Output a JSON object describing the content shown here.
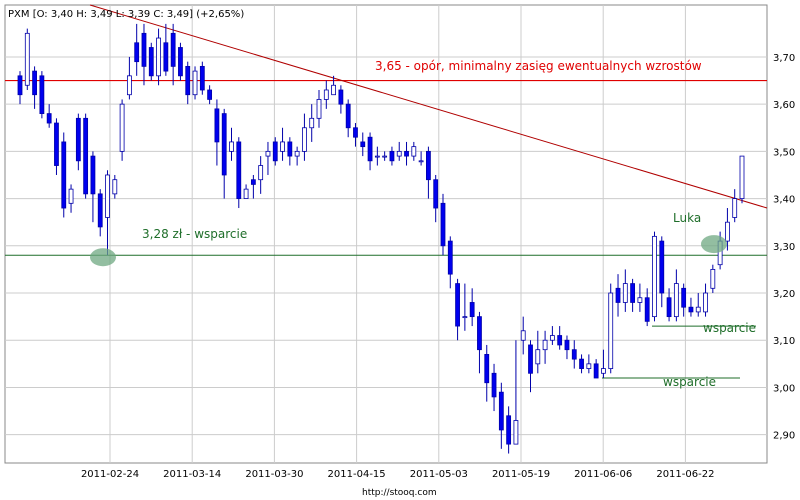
{
  "header": {
    "symbol": "PXM",
    "ohlc": "[O: 3,40  H: 3,49  L: 3,39  C: 3,49]",
    "change": "(+2,65%)"
  },
  "footer": {
    "url": "http://stooq.com"
  },
  "colors": {
    "up": "#ffffff",
    "down": "#0000ee",
    "wick": "#0000aa",
    "resistance": "#e00000",
    "trend": "#b00000",
    "support": "#1f6e2a",
    "marker": "#6fa882",
    "grid": "#cccccc"
  },
  "chart_data": {
    "type": "candlestick",
    "x_ticks": [
      "2011-02-24",
      "2011-03-14",
      "2011-03-30",
      "2011-04-15",
      "2011-05-03",
      "2011-05-19",
      "2011-06-06",
      "2011-06-22"
    ],
    "y_ticks": [
      "2,90",
      "3,00",
      "3,10",
      "3,20",
      "3,30",
      "3,40",
      "3,50",
      "3,60",
      "3,70"
    ],
    "ylim": [
      2.84,
      3.81
    ],
    "grid": true,
    "lines": {
      "resistance": {
        "value": 3.65,
        "label": "3,65 - opór, minimalny zasięg ewentualnych wzrostów"
      },
      "support_main": {
        "value": 3.28,
        "label": "3,28 zł - wsparcie"
      },
      "support_1": {
        "value": 3.13,
        "label": "wsparcie"
      },
      "support_2": {
        "value": 3.02,
        "label": "wsparcie"
      },
      "trend": {
        "start": 3.81,
        "end": 3.38
      }
    },
    "annotations": {
      "gap": "Luka"
    },
    "candles": [
      [
        3.66,
        3.62,
        3.67,
        3.6
      ],
      [
        3.64,
        3.75,
        3.76,
        3.63
      ],
      [
        3.67,
        3.62,
        3.68,
        3.59
      ],
      [
        3.66,
        3.58,
        3.67,
        3.57
      ],
      [
        3.58,
        3.56,
        3.6,
        3.55
      ],
      [
        3.56,
        3.47,
        3.57,
        3.45
      ],
      [
        3.52,
        3.38,
        3.54,
        3.36
      ],
      [
        3.39,
        3.42,
        3.43,
        3.37
      ],
      [
        3.57,
        3.48,
        3.58,
        3.46
      ],
      [
        3.57,
        3.41,
        3.58,
        3.4
      ],
      [
        3.49,
        3.41,
        3.5,
        3.35
      ],
      [
        3.41,
        3.34,
        3.42,
        3.32
      ],
      [
        3.36,
        3.45,
        3.46,
        3.28
      ],
      [
        3.41,
        3.44,
        3.45,
        3.4
      ],
      [
        3.5,
        3.6,
        3.61,
        3.48
      ],
      [
        3.62,
        3.66,
        3.7,
        3.61
      ],
      [
        3.73,
        3.69,
        3.77,
        3.66
      ],
      [
        3.75,
        3.68,
        3.77,
        3.64
      ],
      [
        3.72,
        3.66,
        3.73,
        3.65
      ],
      [
        3.66,
        3.74,
        3.76,
        3.64
      ],
      [
        3.73,
        3.67,
        3.77,
        3.66
      ],
      [
        3.75,
        3.68,
        3.77,
        3.64
      ],
      [
        3.72,
        3.66,
        3.73,
        3.65
      ],
      [
        3.68,
        3.62,
        3.69,
        3.6
      ],
      [
        3.62,
        3.67,
        3.68,
        3.61
      ],
      [
        3.68,
        3.63,
        3.69,
        3.62
      ],
      [
        3.63,
        3.61,
        3.64,
        3.6
      ],
      [
        3.59,
        3.52,
        3.61,
        3.47
      ],
      [
        3.58,
        3.45,
        3.59,
        3.4
      ],
      [
        3.5,
        3.52,
        3.55,
        3.48
      ],
      [
        3.52,
        3.4,
        3.53,
        3.38
      ],
      [
        3.4,
        3.42,
        3.43,
        3.41
      ],
      [
        3.44,
        3.43,
        3.45,
        3.4
      ],
      [
        3.44,
        3.47,
        3.49,
        3.41
      ],
      [
        3.49,
        3.5,
        3.52,
        3.45
      ],
      [
        3.52,
        3.48,
        3.53,
        3.47
      ],
      [
        3.5,
        3.52,
        3.55,
        3.48
      ],
      [
        3.52,
        3.49,
        3.53,
        3.47
      ],
      [
        3.49,
        3.5,
        3.51,
        3.47
      ],
      [
        3.5,
        3.55,
        3.58,
        3.48
      ],
      [
        3.55,
        3.57,
        3.6,
        3.52
      ],
      [
        3.57,
        3.61,
        3.63,
        3.55
      ],
      [
        3.61,
        3.63,
        3.65,
        3.59
      ],
      [
        3.62,
        3.64,
        3.66,
        3.62
      ],
      [
        3.63,
        3.6,
        3.64,
        3.58
      ],
      [
        3.6,
        3.55,
        3.61,
        3.53
      ],
      [
        3.55,
        3.53,
        3.56,
        3.51
      ],
      [
        3.52,
        3.51,
        3.54,
        3.49
      ],
      [
        3.53,
        3.48,
        3.54,
        3.46
      ],
      [
        3.49,
        3.49,
        3.51,
        3.47
      ],
      [
        3.49,
        3.49,
        3.5,
        3.48
      ],
      [
        3.5,
        3.48,
        3.51,
        3.47
      ],
      [
        3.49,
        3.5,
        3.52,
        3.48
      ],
      [
        3.5,
        3.49,
        3.52,
        3.47
      ],
      [
        3.49,
        3.51,
        3.52,
        3.48
      ],
      [
        3.48,
        3.48,
        3.5,
        3.47
      ],
      [
        3.5,
        3.44,
        3.51,
        3.4
      ],
      [
        3.44,
        3.38,
        3.45,
        3.35
      ],
      [
        3.39,
        3.3,
        3.41,
        3.28
      ],
      [
        3.31,
        3.24,
        3.32,
        3.21
      ],
      [
        3.22,
        3.13,
        3.23,
        3.1
      ],
      [
        3.15,
        3.15,
        3.22,
        3.12
      ],
      [
        3.18,
        3.15,
        3.21,
        3.13
      ],
      [
        3.15,
        3.08,
        3.16,
        3.03
      ],
      [
        3.07,
        3.01,
        3.09,
        2.97
      ],
      [
        3.03,
        2.98,
        3.05,
        2.95
      ],
      [
        2.99,
        2.91,
        3.01,
        2.87
      ],
      [
        2.94,
        2.88,
        2.96,
        2.86
      ],
      [
        2.88,
        2.93,
        3.1,
        2.88
      ],
      [
        3.1,
        3.12,
        3.15,
        3.07
      ],
      [
        3.09,
        3.03,
        3.1,
        2.99
      ],
      [
        3.05,
        3.08,
        3.12,
        3.03
      ],
      [
        3.08,
        3.1,
        3.12,
        3.05
      ],
      [
        3.1,
        3.11,
        3.13,
        3.09
      ],
      [
        3.11,
        3.09,
        3.13,
        3.08
      ],
      [
        3.1,
        3.08,
        3.11,
        3.06
      ],
      [
        3.08,
        3.06,
        3.1,
        3.04
      ],
      [
        3.06,
        3.04,
        3.07,
        3.03
      ],
      [
        3.04,
        3.05,
        3.07,
        3.03
      ],
      [
        3.05,
        3.02,
        3.06,
        3.02
      ],
      [
        3.03,
        3.04,
        3.08,
        3.02
      ],
      [
        3.04,
        3.2,
        3.22,
        3.03
      ],
      [
        3.21,
        3.18,
        3.24,
        3.15
      ],
      [
        3.18,
        3.22,
        3.25,
        3.16
      ],
      [
        3.22,
        3.18,
        3.23,
        3.16
      ],
      [
        3.18,
        3.19,
        3.22,
        3.16
      ],
      [
        3.19,
        3.14,
        3.21,
        3.13
      ],
      [
        3.15,
        3.32,
        3.33,
        3.14
      ],
      [
        3.31,
        3.2,
        3.32,
        3.17
      ],
      [
        3.19,
        3.15,
        3.21,
        3.14
      ],
      [
        3.15,
        3.22,
        3.25,
        3.14
      ],
      [
        3.21,
        3.17,
        3.22,
        3.15
      ],
      [
        3.17,
        3.16,
        3.19,
        3.15
      ],
      [
        3.16,
        3.17,
        3.2,
        3.15
      ],
      [
        3.16,
        3.2,
        3.22,
        3.15
      ],
      [
        3.21,
        3.25,
        3.26,
        3.2
      ],
      [
        3.26,
        3.31,
        3.33,
        3.25
      ],
      [
        3.31,
        3.35,
        3.38,
        3.29
      ],
      [
        3.36,
        3.4,
        3.42,
        3.35
      ],
      [
        3.4,
        3.49,
        3.49,
        3.39
      ]
    ]
  }
}
